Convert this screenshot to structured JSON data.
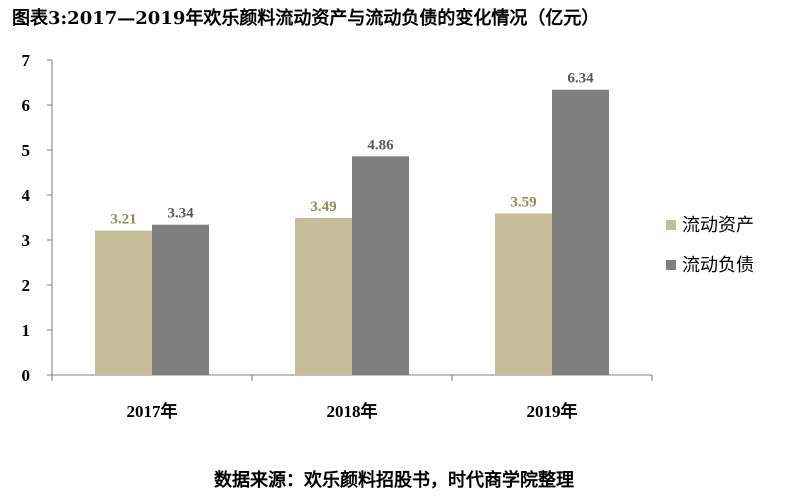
{
  "title": "图表3:2017—2019年欢乐颜料流动资产与流动负债的变化情况（亿元）",
  "source": "数据来源：欢乐颜料招股书，时代商学院整理",
  "colors": {
    "current_assets": "#c4bd97",
    "current_liabilities": "#7f7f7f",
    "assets_label": "#948a54",
    "liabilities_label": "#595959",
    "axis": "#7f7f7f"
  },
  "chart_data": {
    "type": "bar",
    "title": "图表3:2017—2019年欢乐颜料流动资产与流动负债的变化情况（亿元）",
    "categories": [
      "2017年",
      "2018年",
      "2019年"
    ],
    "series": [
      {
        "name": "流动资产",
        "values": [
          3.21,
          3.49,
          3.59
        ]
      },
      {
        "name": "流动负债",
        "values": [
          3.34,
          4.86,
          6.34
        ]
      }
    ],
    "data_labels": [
      [
        "3.21",
        "3.49",
        "3.59"
      ],
      [
        "3.34",
        "4.86",
        "6.34"
      ]
    ],
    "xlabel": "",
    "ylabel": "",
    "ylim": [
      0,
      7
    ],
    "yticks": [
      "0",
      "1",
      "2",
      "3",
      "4",
      "5",
      "6",
      "7"
    ],
    "grid": false,
    "legend_position": "right"
  }
}
